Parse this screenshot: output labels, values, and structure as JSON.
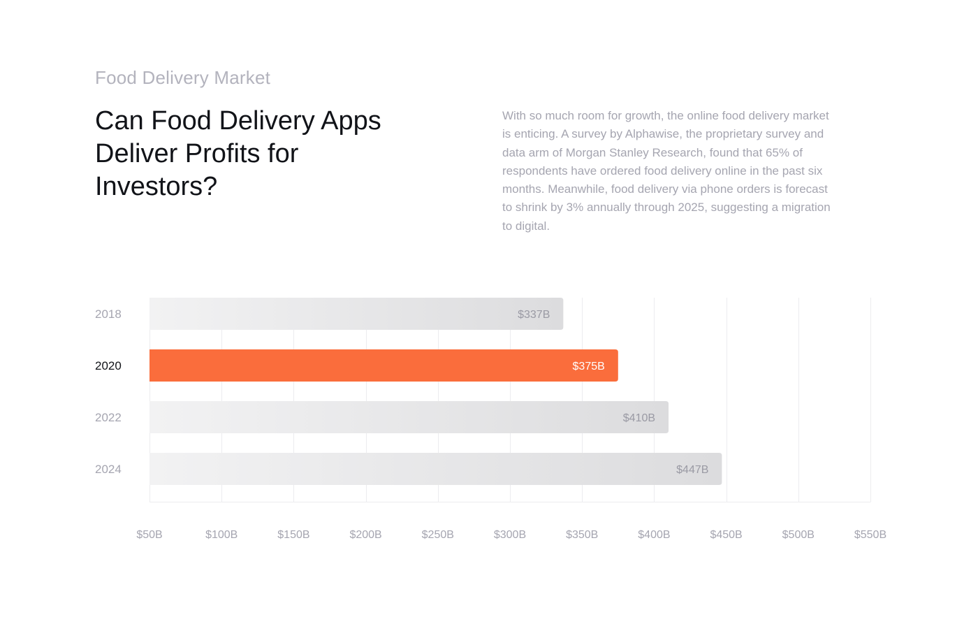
{
  "header": {
    "eyebrow": "Food Delivery Market",
    "title": "Can Food Delivery Apps Deliver Profits for Investors?",
    "description": "With so much room for growth, the online food delivery market is enticing. A survey by Alphawise, the proprietary survey and data arm of Morgan Stanley Research, found that 65% of respondents have ordered food delivery online in the past six months. Meanwhile, food delivery via phone orders is forecast to shrink by 3% annually through 2025, suggesting a migration to digital."
  },
  "colors": {
    "accent": "#fa6d3c",
    "bar_light": "#f2f2f3",
    "bar_dark": "#dcdcde",
    "grid": "#ececef",
    "tick_text": "#a5a5b0",
    "category_text": "#a5a5b0",
    "category_highlight_text": "#111318",
    "bar_label_text": "#9a9aa4",
    "bar_label_highlight_text": "#ffffff"
  },
  "chart_data": {
    "type": "bar",
    "orientation": "horizontal",
    "categories": [
      "2018",
      "2020",
      "2022",
      "2024"
    ],
    "values": [
      337,
      375,
      410,
      447
    ],
    "value_labels": [
      "$337B",
      "$375B",
      "$410B",
      "$447B"
    ],
    "highlight": "2020",
    "xlim": [
      50,
      550
    ],
    "xticks": [
      50,
      100,
      150,
      200,
      250,
      300,
      350,
      400,
      450,
      500,
      550
    ],
    "xtick_labels": [
      "$50B",
      "$100B",
      "$150B",
      "$200B",
      "$250B",
      "$300B",
      "$350B",
      "$400B",
      "$450B",
      "$500B",
      "$550B"
    ],
    "grid": true,
    "title": "",
    "xlabel": "",
    "ylabel": ""
  }
}
